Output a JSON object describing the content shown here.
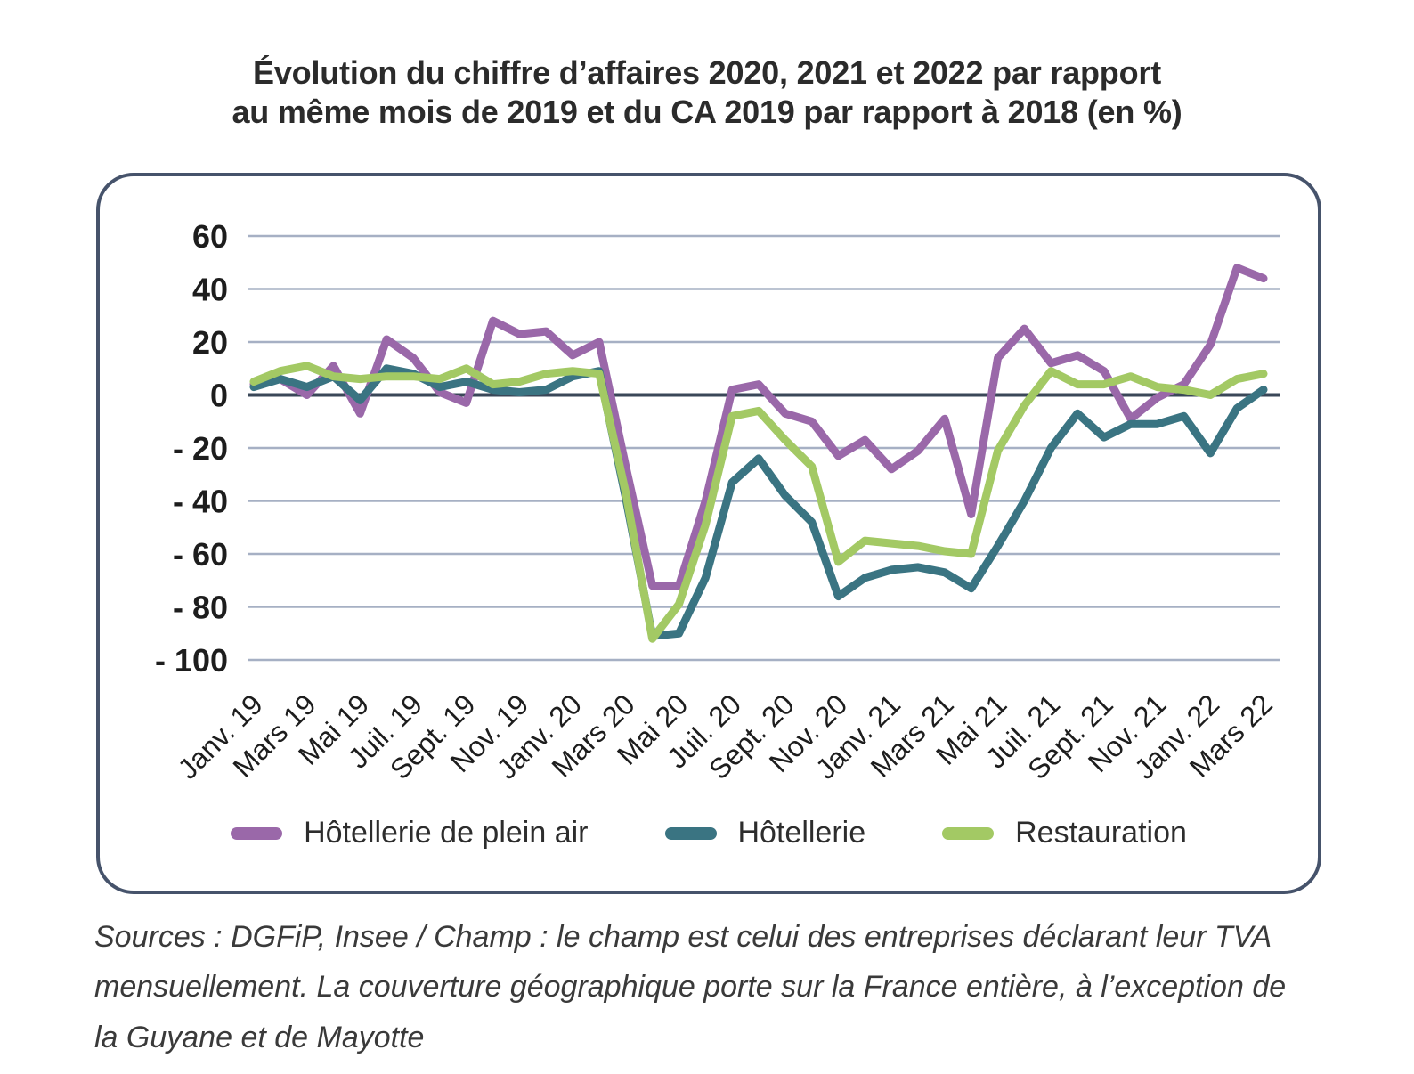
{
  "title": {
    "line1": "Évolution du chiffre d’affaires 2020, 2021 et 2022 par rapport",
    "line2": "au même mois de 2019 et du CA 2019 par rapport à 2018 (en %)"
  },
  "chart_data": {
    "type": "line",
    "title": "Évolution du chiffre d’affaires 2020, 2021 et 2022 par rapport au même mois de 2019 et du CA 2019 par rapport à 2018 (en %)",
    "n_points": 39,
    "x_tick_every": 2,
    "x_tick_labels": [
      "Janv. 19",
      "Mars 19",
      "Mai 19",
      "Juil. 19",
      "Sept. 19",
      "Nov. 19",
      "Janv. 20",
      "Mars 20",
      "Mai 20",
      "Juil. 20",
      "Sept. 20",
      "Nov. 20",
      "Janv. 21",
      "Mars 21",
      "Mai 21",
      "Juil. 21",
      "Sept. 21",
      "Nov. 21",
      "Janv. 22",
      "Mars 22"
    ],
    "ylim": [
      -100,
      60
    ],
    "yticks": [
      60,
      40,
      20,
      0,
      -20,
      -40,
      -60,
      -80,
      -100
    ],
    "ytick_labels": [
      "60",
      "40",
      "20",
      "0",
      "- 20",
      "- 40",
      "- 60",
      "- 80",
      "- 100"
    ],
    "grid": true,
    "legend_position": "bottom",
    "series": [
      {
        "name": "Hôtellerie de plein air",
        "color": "#9a68a9",
        "values": [
          4,
          6,
          0,
          11,
          -7,
          21,
          14,
          1,
          -3,
          28,
          23,
          24,
          15,
          20,
          -27,
          -72,
          -72,
          -40,
          2,
          4,
          -7,
          -10,
          -23,
          -17,
          -28,
          -21,
          -9,
          -45,
          14,
          25,
          12,
          15,
          9,
          -9,
          -1,
          4,
          19,
          48,
          44
        ]
      },
      {
        "name": "Hôtellerie",
        "color": "#3a7482",
        "values": [
          3,
          6,
          3,
          7,
          -2,
          10,
          8,
          3,
          5,
          2,
          1,
          2,
          7,
          9,
          -39,
          -91,
          -90,
          -69,
          -33,
          -24,
          -38,
          -48,
          -76,
          -69,
          -66,
          -65,
          -67,
          -73,
          -57,
          -40,
          -20,
          -7,
          -16,
          -11,
          -11,
          -8,
          -22,
          -5,
          2
        ]
      },
      {
        "name": "Restauration",
        "color": "#a3c964",
        "values": [
          5,
          9,
          11,
          7,
          6,
          7,
          7,
          6,
          10,
          4,
          5,
          8,
          9,
          8,
          -37,
          -92,
          -79,
          -49,
          -8,
          -6,
          -17,
          -27,
          -63,
          -55,
          -56,
          -57,
          -59,
          -60,
          -21,
          -4,
          9,
          4,
          4,
          7,
          3,
          2,
          0,
          6,
          8
        ]
      }
    ],
    "colors": {
      "gridline": "#a6b0c4",
      "zero_line": "#3a4758",
      "panel_border": "#46536b",
      "axis_text": "#1d1d1d"
    }
  },
  "source_note": {
    "lines": [
      "Sources : DGFiP, Insee / Champ : le champ est celui des entreprises déclarant leur TVA",
      "mensuellement. La couverture géographique porte sur la France entière, à l’exception de",
      "la Guyane et de Mayotte"
    ]
  }
}
